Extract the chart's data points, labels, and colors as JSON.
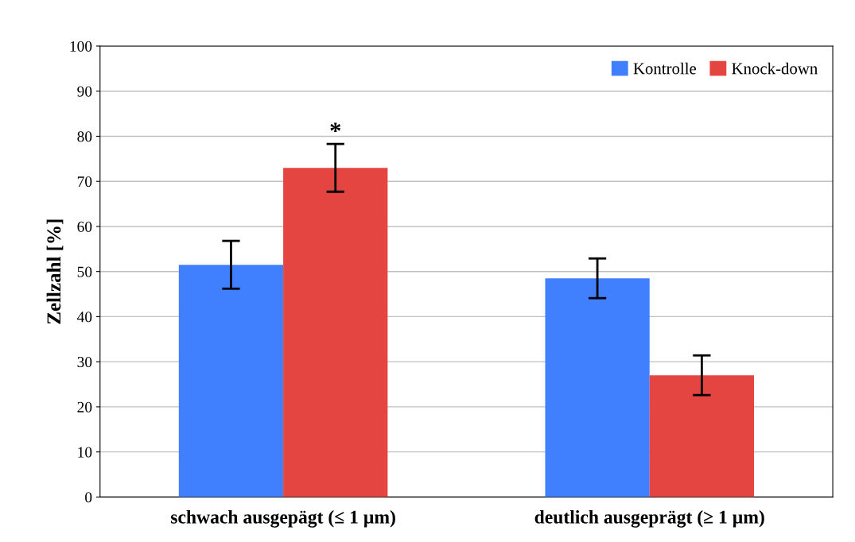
{
  "chart_data": {
    "type": "bar",
    "ylabel": "Zellzahl [%]",
    "categories": [
      "schwach ausgepägt (≤ 1 µm)",
      "deutlich ausgeprägt (≥ 1 µm)"
    ],
    "series": [
      {
        "name": "Kontrolle",
        "color": "#4080ff",
        "values": [
          51.5,
          48.5
        ],
        "errors": [
          5.3,
          4.4
        ]
      },
      {
        "name": "Knock-down",
        "color": "#e44540",
        "values": [
          73,
          27
        ],
        "errors": [
          5.3,
          4.4
        ]
      }
    ],
    "annotations": [
      "*"
    ],
    "ylim": [
      0,
      100
    ],
    "yticks": [
      0,
      10,
      20,
      30,
      40,
      50,
      60,
      70,
      80,
      90,
      100
    ],
    "grid": "y",
    "legend": "top right"
  }
}
